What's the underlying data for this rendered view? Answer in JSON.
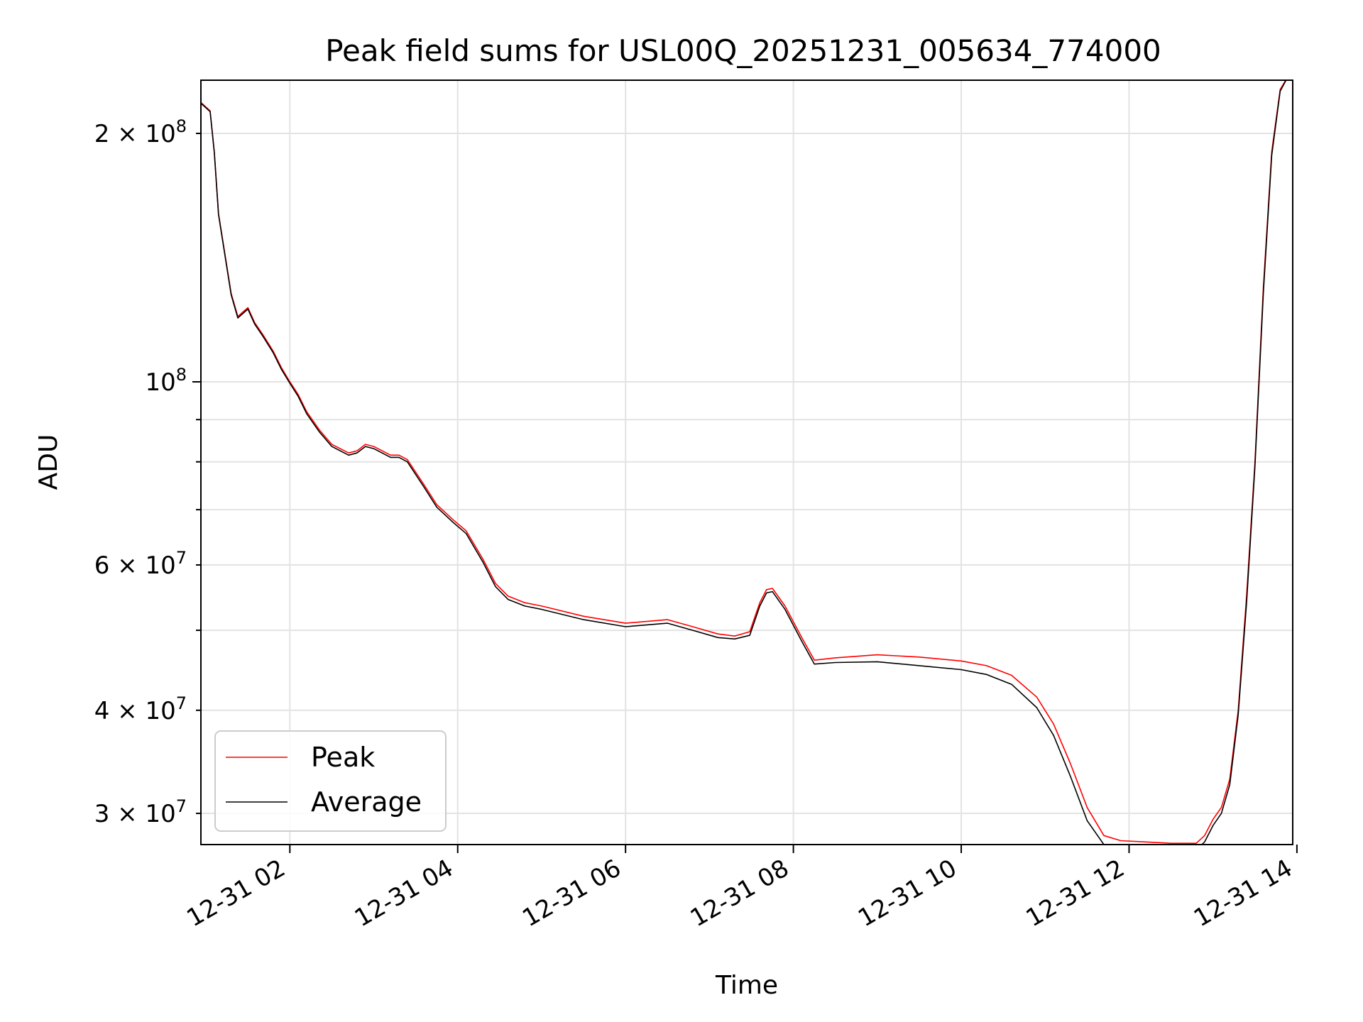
{
  "chart_data": {
    "type": "line",
    "title": "Peak field sums for USL00Q_20251231_005634_774000",
    "xlabel": "Time",
    "ylabel": "ADU",
    "yscale": "log",
    "xlim": [
      0.94,
      13.95
    ],
    "ylim": [
      27500000.0,
      232000000.0
    ],
    "grid": true,
    "legend_position": "lower-left",
    "x_ticks": [
      {
        "value": 2,
        "label": "12-31 02"
      },
      {
        "value": 4,
        "label": "12-31 04"
      },
      {
        "value": 6,
        "label": "12-31 06"
      },
      {
        "value": 8,
        "label": "12-31 08"
      },
      {
        "value": 10,
        "label": "12-31 10"
      },
      {
        "value": 12,
        "label": "12-31 12"
      },
      {
        "value": 14,
        "label": "12-31 14"
      }
    ],
    "y_major_ticks": [
      {
        "value": 100000000,
        "mantissa": "",
        "exponent": "8"
      }
    ],
    "y_minor_ticks": [
      {
        "value": 30000000,
        "mantissa": "3",
        "exponent": "7"
      },
      {
        "value": 40000000,
        "mantissa": "4",
        "exponent": "7"
      },
      {
        "value": 60000000,
        "mantissa": "6",
        "exponent": "7"
      },
      {
        "value": 200000000,
        "mantissa": "2",
        "exponent": "8"
      },
      {
        "value": 50000000,
        "mantissa": "",
        "exponent": ""
      },
      {
        "value": 70000000,
        "mantissa": "",
        "exponent": ""
      },
      {
        "value": 80000000,
        "mantissa": "",
        "exponent": ""
      },
      {
        "value": 90000000,
        "mantissa": "",
        "exponent": ""
      }
    ],
    "series": [
      {
        "name": "Peak",
        "color": "#ff0000",
        "x": [
          0.94,
          1.05,
          1.1,
          1.15,
          1.3,
          1.38,
          1.5,
          1.58,
          1.68,
          1.8,
          1.9,
          2.0,
          2.1,
          2.2,
          2.35,
          2.5,
          2.7,
          2.8,
          2.9,
          3.0,
          3.2,
          3.3,
          3.4,
          3.6,
          3.75,
          3.95,
          4.1,
          4.3,
          4.45,
          4.6,
          4.8,
          5.0,
          5.5,
          6.0,
          6.5,
          6.8,
          7.1,
          7.3,
          7.48,
          7.6,
          7.68,
          7.75,
          7.9,
          8.1,
          8.25,
          8.5,
          9.0,
          9.5,
          10.0,
          10.3,
          10.6,
          10.9,
          11.1,
          11.3,
          11.5,
          11.7,
          11.9,
          12.2,
          12.5,
          12.8,
          12.9,
          13.0,
          13.1,
          13.2,
          13.3,
          13.4,
          13.5,
          13.6,
          13.7,
          13.8,
          13.9
        ],
        "values": [
          218000000,
          213000000,
          190000000,
          160000000,
          128000000,
          120000000,
          123000000,
          118000000,
          114000000,
          109000000,
          104000000,
          100000000,
          96500000,
          92000000,
          87500000,
          84000000,
          82000000,
          82500000,
          84000000,
          83500000,
          81500000,
          81500000,
          80500000,
          75000000,
          71000000,
          68000000,
          66000000,
          61000000,
          57000000,
          55000000,
          54000000,
          53500000,
          52000000,
          51000000,
          51500000,
          50500000,
          49500000,
          49200000,
          49800000,
          54000000,
          56000000,
          56200000,
          53500000,
          49000000,
          46000000,
          46300000,
          46700000,
          46400000,
          45900000,
          45300000,
          44100000,
          41500000,
          38500000,
          34500000,
          30500000,
          28200000,
          27800000,
          27700000,
          27600000,
          27600000,
          28200000,
          29500000,
          30500000,
          33000000,
          40000000,
          55000000,
          80000000,
          130000000,
          190000000,
          226000000,
          235000000
        ]
      },
      {
        "name": "Average",
        "color": "#000000",
        "x": [
          0.94,
          1.05,
          1.1,
          1.15,
          1.3,
          1.38,
          1.5,
          1.58,
          1.68,
          1.8,
          1.9,
          2.0,
          2.1,
          2.2,
          2.35,
          2.5,
          2.7,
          2.8,
          2.9,
          3.0,
          3.2,
          3.3,
          3.4,
          3.6,
          3.75,
          3.95,
          4.1,
          4.3,
          4.45,
          4.6,
          4.8,
          5.0,
          5.5,
          6.0,
          6.5,
          6.8,
          7.1,
          7.3,
          7.48,
          7.6,
          7.68,
          7.75,
          7.9,
          8.1,
          8.25,
          8.5,
          9.0,
          9.5,
          10.0,
          10.3,
          10.6,
          10.9,
          11.1,
          11.3,
          11.5,
          11.7,
          11.9,
          12.2,
          12.5,
          12.8,
          12.9,
          13.0,
          13.1,
          13.2,
          13.3,
          13.4,
          13.5,
          13.6,
          13.7,
          13.8,
          13.9
        ],
        "values": [
          217500000,
          212500000,
          189500000,
          159500000,
          127500000,
          119500000,
          122500000,
          117500000,
          113500000,
          108500000,
          103500000,
          99600000,
          96000000,
          91500000,
          87000000,
          83500000,
          81500000,
          82000000,
          83500000,
          83000000,
          81000000,
          81000000,
          80000000,
          74500000,
          70500000,
          67500000,
          65500000,
          60500000,
          56500000,
          54500000,
          53500000,
          53000000,
          51500000,
          50500000,
          51000000,
          50000000,
          49000000,
          48800000,
          49300000,
          53500000,
          55500000,
          55700000,
          53000000,
          48500000,
          45500000,
          45700000,
          45800000,
          45300000,
          44800000,
          44200000,
          43000000,
          40300000,
          37300000,
          33300000,
          29400000,
          27500000,
          27200000,
          27100000,
          27000000,
          27100000,
          27700000,
          29000000,
          30000000,
          32500000,
          39500000,
          54000000,
          79000000,
          128000000,
          188000000,
          225000000,
          235000000
        ]
      }
    ]
  }
}
